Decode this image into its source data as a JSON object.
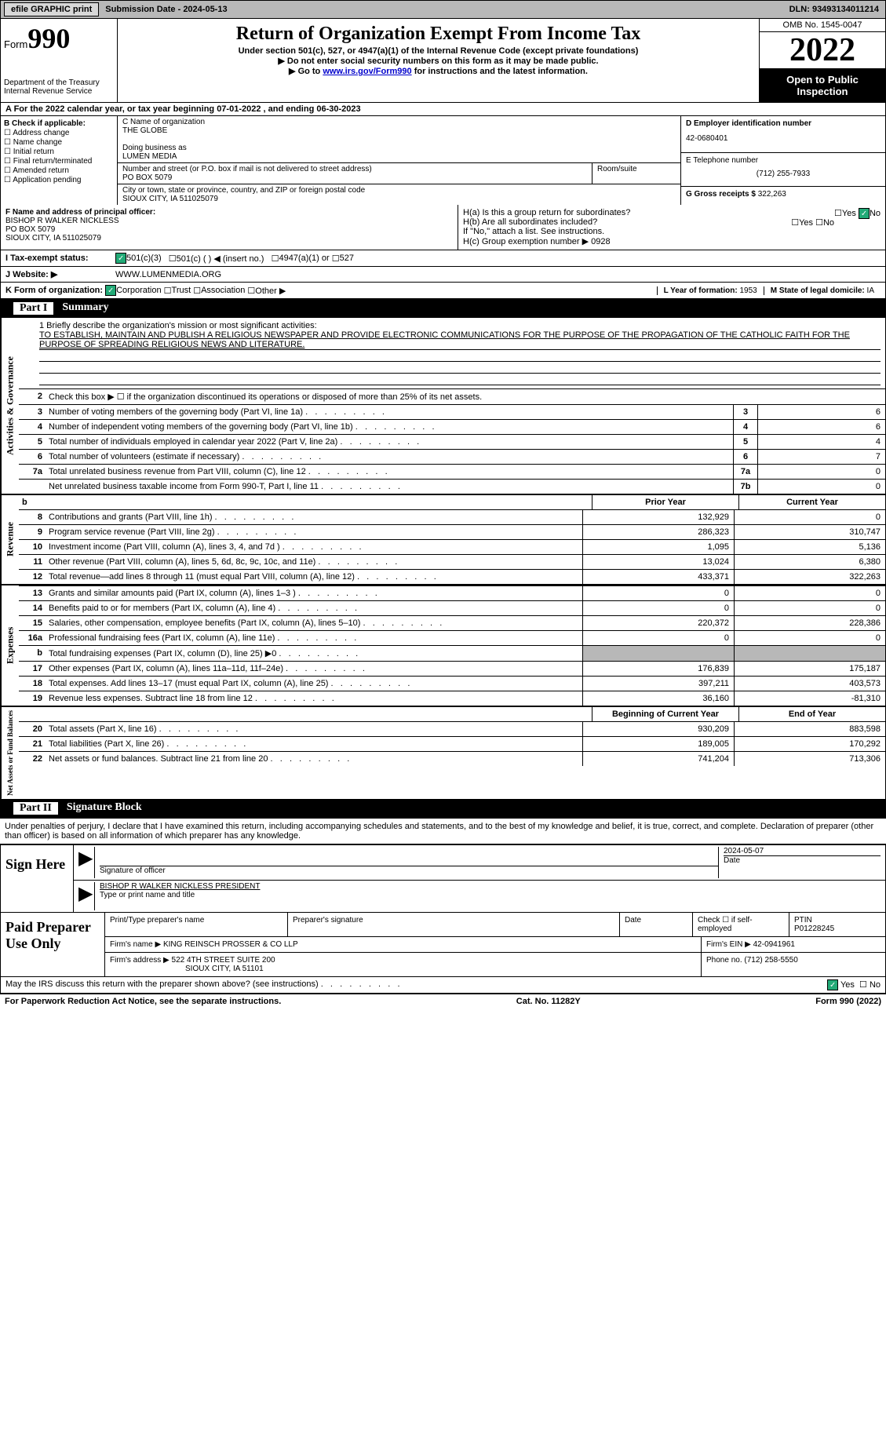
{
  "topbar": {
    "btn_efile": "efile GRAPHIC print",
    "submission_date_label": "Submission Date - 2024-05-13",
    "dln": "DLN: 93493134011214"
  },
  "header": {
    "form_label": "Form",
    "form_num": "990",
    "dept": "Department of the Treasury\nInternal Revenue Service",
    "title": "Return of Organization Exempt From Income Tax",
    "subtitle": "Under section 501(c), 527, or 4947(a)(1) of the Internal Revenue Code (except private foundations)",
    "note1": "▶ Do not enter social security numbers on this form as it may be made public.",
    "note2_pre": "▶ Go to ",
    "note2_link": "www.irs.gov/Form990",
    "note2_post": " for instructions and the latest information.",
    "omb": "OMB No. 1545-0047",
    "year": "2022",
    "inspect": "Open to Public Inspection"
  },
  "row_a": "A For the 2022 calendar year, or tax year beginning 07-01-2022   , and ending 06-30-2023",
  "col_b": {
    "label": "B Check if applicable:",
    "items": [
      "Address change",
      "Name change",
      "Initial return",
      "Final return/terminated",
      "Amended return",
      "Application pending"
    ]
  },
  "col_c": {
    "name_label": "C Name of organization",
    "name": "THE GLOBE",
    "dba_label": "Doing business as",
    "dba": "LUMEN MEDIA",
    "street_label": "Number and street (or P.O. box if mail is not delivered to street address)",
    "room_label": "Room/suite",
    "street": "PO BOX 5079",
    "city_label": "City or town, state or province, country, and ZIP or foreign postal code",
    "city": "SIOUX CITY, IA  511025079"
  },
  "col_de": {
    "ein_label": "D Employer identification number",
    "ein": "42-0680401",
    "phone_label": "E Telephone number",
    "phone": "(712) 255-7933",
    "gross_label": "G Gross receipts $",
    "gross": "322,263"
  },
  "row_f": {
    "label": "F Name and address of principal officer:",
    "name": "BISHOP R WALKER NICKLESS",
    "addr1": "PO BOX 5079",
    "addr2": "SIOUX CITY, IA  511025079",
    "ha": "H(a)  Is this a group return for subordinates?",
    "hb": "H(b)  Are all subordinates included?",
    "hb_note": "If \"No,\" attach a list. See instructions.",
    "hc": "H(c)  Group exemption number ▶",
    "hc_val": "0928",
    "yes": "Yes",
    "no": "No"
  },
  "row_i": {
    "label": "I   Tax-exempt status:",
    "o1": "501(c)(3)",
    "o2": "501(c) (   ) ◀ (insert no.)",
    "o3": "4947(a)(1) or",
    "o4": "527"
  },
  "row_j": {
    "label": "J   Website: ▶",
    "val": "WWW.LUMENMEDIA.ORG"
  },
  "row_k": {
    "label": "K Form of organization:",
    "o1": "Corporation",
    "o2": "Trust",
    "o3": "Association",
    "o4": "Other ▶",
    "l_label": "L Year of formation:",
    "l_val": "1953",
    "m_label": "M State of legal domicile:",
    "m_val": "IA"
  },
  "parts": {
    "p1": "Part I",
    "p1_title": "Summary",
    "p2": "Part II",
    "p2_title": "Signature Block"
  },
  "mission": {
    "label": "1   Briefly describe the organization's mission or most significant activities:",
    "text": "TO ESTABLISH, MAINTAIN AND PUBLISH A RELIGIOUS NEWSPAPER AND PROVIDE ELECTRONIC COMMUNICATIONS FOR THE PURPOSE OF THE PROPAGATION OF THE CATHOLIC FAITH FOR THE PURPOSE OF SPREADING RELIGIOUS NEWS AND LITERATURE."
  },
  "line2": "Check this box ▶ ☐ if the organization discontinued its operations or disposed of more than 25% of its net assets.",
  "summary_lines": [
    {
      "n": "3",
      "d": "Number of voting members of the governing body (Part VI, line 1a)",
      "box": "3",
      "v": "6"
    },
    {
      "n": "4",
      "d": "Number of independent voting members of the governing body (Part VI, line 1b)",
      "box": "4",
      "v": "6"
    },
    {
      "n": "5",
      "d": "Total number of individuals employed in calendar year 2022 (Part V, line 2a)",
      "box": "5",
      "v": "4"
    },
    {
      "n": "6",
      "d": "Total number of volunteers (estimate if necessary)",
      "box": "6",
      "v": "7"
    },
    {
      "n": "7a",
      "d": "Total unrelated business revenue from Part VIII, column (C), line 12",
      "box": "7a",
      "v": "0"
    },
    {
      "n": "",
      "d": "Net unrelated business taxable income from Form 990-T, Part I, line 11",
      "box": "7b",
      "v": "0"
    }
  ],
  "col_headers": {
    "b": "b",
    "prior": "Prior Year",
    "current": "Current Year",
    "begin": "Beginning of Current Year",
    "end": "End of Year"
  },
  "revenue": [
    {
      "n": "8",
      "d": "Contributions and grants (Part VIII, line 1h)",
      "p": "132,929",
      "c": "0"
    },
    {
      "n": "9",
      "d": "Program service revenue (Part VIII, line 2g)",
      "p": "286,323",
      "c": "310,747"
    },
    {
      "n": "10",
      "d": "Investment income (Part VIII, column (A), lines 3, 4, and 7d )",
      "p": "1,095",
      "c": "5,136"
    },
    {
      "n": "11",
      "d": "Other revenue (Part VIII, column (A), lines 5, 6d, 8c, 9c, 10c, and 11e)",
      "p": "13,024",
      "c": "6,380"
    },
    {
      "n": "12",
      "d": "Total revenue—add lines 8 through 11 (must equal Part VIII, column (A), line 12)",
      "p": "433,371",
      "c": "322,263"
    }
  ],
  "expenses": [
    {
      "n": "13",
      "d": "Grants and similar amounts paid (Part IX, column (A), lines 1–3 )",
      "p": "0",
      "c": "0"
    },
    {
      "n": "14",
      "d": "Benefits paid to or for members (Part IX, column (A), line 4)",
      "p": "0",
      "c": "0"
    },
    {
      "n": "15",
      "d": "Salaries, other compensation, employee benefits (Part IX, column (A), lines 5–10)",
      "p": "220,372",
      "c": "228,386"
    },
    {
      "n": "16a",
      "d": "Professional fundraising fees (Part IX, column (A), line 11e)",
      "p": "0",
      "c": "0"
    },
    {
      "n": "b",
      "d": "Total fundraising expenses (Part IX, column (D), line 25) ▶0",
      "p": "",
      "c": "",
      "shade": true
    },
    {
      "n": "17",
      "d": "Other expenses (Part IX, column (A), lines 11a–11d, 11f–24e)",
      "p": "176,839",
      "c": "175,187"
    },
    {
      "n": "18",
      "d": "Total expenses. Add lines 13–17 (must equal Part IX, column (A), line 25)",
      "p": "397,211",
      "c": "403,573"
    },
    {
      "n": "19",
      "d": "Revenue less expenses. Subtract line 18 from line 12",
      "p": "36,160",
      "c": "-81,310"
    }
  ],
  "netassets": [
    {
      "n": "20",
      "d": "Total assets (Part X, line 16)",
      "p": "930,209",
      "c": "883,598"
    },
    {
      "n": "21",
      "d": "Total liabilities (Part X, line 26)",
      "p": "189,005",
      "c": "170,292"
    },
    {
      "n": "22",
      "d": "Net assets or fund balances. Subtract line 21 from line 20",
      "p": "741,204",
      "c": "713,306"
    }
  ],
  "vtabs": {
    "gov": "Activities & Governance",
    "rev": "Revenue",
    "exp": "Expenses",
    "net": "Net Assets or Fund Balances"
  },
  "sig_text": "Under penalties of perjury, I declare that I have examined this return, including accompanying schedules and statements, and to the best of my knowledge and belief, it is true, correct, and complete. Declaration of preparer (other than officer) is based on all information of which preparer has any knowledge.",
  "sign": {
    "label": "Sign Here",
    "sig_label": "Signature of officer",
    "date_label": "Date",
    "date": "2024-05-07",
    "name": "BISHOP R WALKER NICKLESS  PRESIDENT",
    "name_label": "Type or print name and title"
  },
  "prep": {
    "label": "Paid Preparer Use Only",
    "r1_c1": "Print/Type preparer's name",
    "r1_c2": "Preparer's signature",
    "r1_c3": "Date",
    "r1_c4_label": "Check ☐ if self-employed",
    "r1_c5_label": "PTIN",
    "r1_c5": "P01228245",
    "r2_label": "Firm's name    ▶",
    "r2_val": "KING REINSCH PROSSER & CO LLP",
    "r2_ein_label": "Firm's EIN ▶",
    "r2_ein": "42-0941961",
    "r3_label": "Firm's address ▶",
    "r3_val": "522 4TH STREET SUITE 200",
    "r3_val2": "SIOUX CITY, IA  51101",
    "r3_phone_label": "Phone no.",
    "r3_phone": "(712) 258-5550"
  },
  "bottom": {
    "q": "May the IRS discuss this return with the preparer shown above? (see instructions)",
    "yes": "Yes",
    "no": "No"
  },
  "footer": {
    "left": "For Paperwork Reduction Act Notice, see the separate instructions.",
    "mid": "Cat. No. 11282Y",
    "right": "Form 990 (2022)"
  },
  "colors": {
    "topbar_bg": "#b8b8b8",
    "btn_bg": "#d8d8d8",
    "black": "#000000",
    "link": "#0000cc",
    "check_on": "#22aa77",
    "shade": "#b8b8b8"
  }
}
